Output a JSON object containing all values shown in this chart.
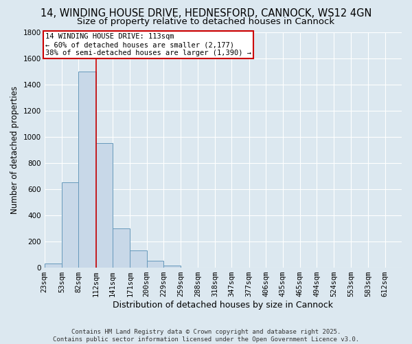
{
  "title": "14, WINDING HOUSE DRIVE, HEDNESFORD, CANNOCK, WS12 4GN",
  "subtitle": "Size of property relative to detached houses in Cannock",
  "xlabel": "Distribution of detached houses by size in Cannock",
  "ylabel": "Number of detached properties",
  "bins": [
    23,
    53,
    82,
    112,
    141,
    171,
    200,
    229,
    259,
    288,
    318,
    347,
    377,
    406,
    435,
    465,
    494,
    524,
    553,
    583,
    612
  ],
  "values": [
    30,
    650,
    1500,
    950,
    300,
    130,
    55,
    15,
    0,
    0,
    0,
    0,
    0,
    0,
    0,
    0,
    0,
    0,
    0,
    0
  ],
  "bar_color": "#c8d8e8",
  "bar_edge_color": "#6699bb",
  "property_line_x": 112,
  "property_line_color": "#cc0000",
  "ylim": [
    0,
    1800
  ],
  "yticks": [
    0,
    200,
    400,
    600,
    800,
    1000,
    1200,
    1400,
    1600,
    1800
  ],
  "annotation_text": "14 WINDING HOUSE DRIVE: 113sqm\n← 60% of detached houses are smaller (2,177)\n38% of semi-detached houses are larger (1,390) →",
  "bg_color": "#dce8f0",
  "footer_text": "Contains HM Land Registry data © Crown copyright and database right 2025.\nContains public sector information licensed under the Open Government Licence v3.0.",
  "grid_color": "#ffffff",
  "title_fontsize": 10.5,
  "subtitle_fontsize": 9.5,
  "ylabel_fontsize": 8.5,
  "xlabel_fontsize": 9,
  "tick_fontsize": 7.5,
  "annotation_fontsize": 7.5,
  "footer_fontsize": 6.5
}
